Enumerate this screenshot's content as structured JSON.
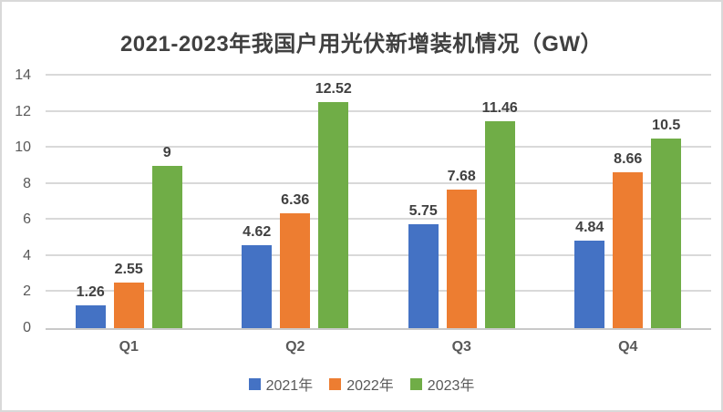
{
  "chart_data": {
    "type": "bar",
    "title": "2021-2023年我国户用光伏新增装机情况（GW）",
    "categories": [
      "Q1",
      "Q2",
      "Q3",
      "Q4"
    ],
    "series": [
      {
        "name": "2021年",
        "color": "#4472C4",
        "values": [
          1.26,
          4.62,
          5.75,
          4.84
        ]
      },
      {
        "name": "2022年",
        "color": "#ED7D31",
        "values": [
          2.55,
          6.36,
          7.68,
          8.66
        ]
      },
      {
        "name": "2023年",
        "color": "#70AD47",
        "values": [
          9,
          12.52,
          11.46,
          10.5
        ]
      }
    ],
    "ylim": [
      0,
      14
    ],
    "yticks": [
      0,
      2,
      4,
      6,
      8,
      10,
      12,
      14
    ],
    "grid": true,
    "legend_position": "bottom",
    "colors": {
      "title_text": "#404040",
      "axis_text": "#595959",
      "data_label_text": "#404040",
      "gridline": "#D9D9D9",
      "border": "#D9D9D9"
    }
  }
}
